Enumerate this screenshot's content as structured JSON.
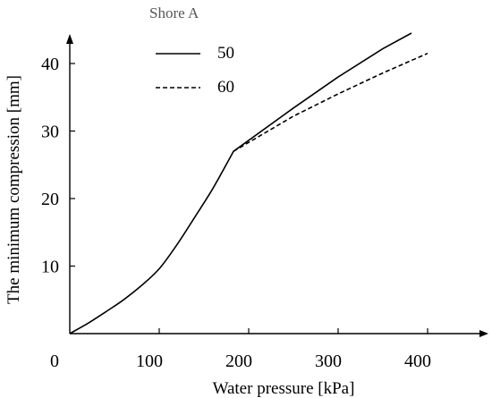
{
  "chart_data": {
    "type": "line",
    "xlabel": "Water pressure [kPa]",
    "ylabel": "The minimum compression [mm]",
    "xlim": [
      0,
      470
    ],
    "ylim": [
      0,
      44
    ],
    "x_ticks": [
      0,
      100,
      200,
      300,
      400
    ],
    "y_ticks": [
      10,
      20,
      30,
      40
    ],
    "legend_title": "Shore A",
    "legend_position": "top-left",
    "grid": false,
    "series": [
      {
        "name": "50",
        "style": "solid",
        "color": "#000000",
        "x": [
          0,
          20,
          40,
          60,
          80,
          100,
          120,
          140,
          160,
          183,
          250,
          300,
          350,
          382
        ],
        "y": [
          0,
          1.5,
          3.2,
          5.0,
          7.1,
          9.6,
          13.2,
          17.3,
          21.5,
          27.0,
          33.4,
          38.0,
          42.2,
          44.5
        ]
      },
      {
        "name": "60",
        "style": "dashed",
        "color": "#000000",
        "x": [
          183,
          250,
          300,
          350,
          400
        ],
        "y": [
          27.0,
          32.2,
          35.5,
          38.6,
          41.5
        ]
      }
    ]
  }
}
